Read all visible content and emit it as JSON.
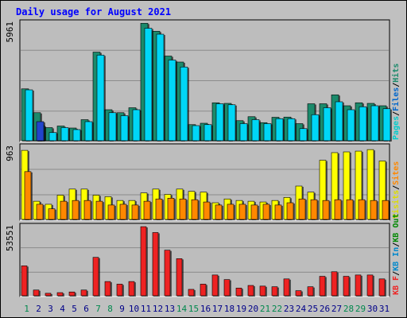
{
  "title": "Daily usage for August 2021",
  "colors": {
    "background": "#c0c0c0",
    "plot_bg": "#bdbdbd",
    "grid": "#8c8c8c",
    "pages": "#00cccc",
    "files": "#1b8a6b",
    "hits": "#00d6f6",
    "visits": "#ffff00",
    "sites": "#ff8800",
    "kb_in": "#0088cc",
    "kb_out": "#008800",
    "kb_f": "#ee2222",
    "title": "#0000ff",
    "weekend": "#00884d",
    "weekday": "#000088"
  },
  "chart_data": [
    {
      "type": "bar",
      "panel": "top",
      "max_label": "5961",
      "ylim": [
        0,
        5961
      ],
      "legend": [
        {
          "name": "Pages",
          "color": "#00cccc"
        },
        {
          "name": "/",
          "color": "#000000"
        },
        {
          "name": "Files",
          "color": "#0066cc"
        },
        {
          "name": "/",
          "color": "#000000"
        },
        {
          "name": "Hits",
          "color": "#1b8a6b"
        }
      ],
      "categories": [
        "1",
        "2",
        "3",
        "4",
        "5",
        "6",
        "7",
        "8",
        "9",
        "10",
        "11",
        "12",
        "13",
        "14",
        "15",
        "16",
        "17",
        "18",
        "19",
        "20",
        "21",
        "22",
        "23",
        "24",
        "25",
        "26",
        "27",
        "28",
        "29",
        "30",
        "31"
      ],
      "series": [
        {
          "name": "Hits",
          "values": [
            2650,
            1450,
            700,
            780,
            680,
            1100,
            4500,
            1600,
            1450,
            1700,
            5950,
            5550,
            4300,
            4000,
            850,
            920,
            1950,
            1920,
            1050,
            1250,
            950,
            1220,
            1230,
            900,
            1900,
            1900,
            2350,
            1800,
            1950,
            1920,
            1800
          ]
        },
        {
          "name": "Files",
          "values": [
            2600,
            800,
            450,
            700,
            600,
            1000,
            4350,
            1450,
            1300,
            1600,
            5700,
            5400,
            4100,
            3750,
            800,
            850,
            1900,
            1850,
            900,
            1100,
            900,
            1150,
            1150,
            650,
            1350,
            1700,
            2000,
            1600,
            1750,
            1800,
            1650
          ]
        },
        {
          "name": "Pages",
          "values": [
            0,
            1000,
            0,
            0,
            0,
            0,
            0,
            0,
            0,
            0,
            0,
            0,
            0,
            0,
            0,
            0,
            0,
            0,
            0,
            0,
            0,
            0,
            0,
            0,
            0,
            0,
            0,
            0,
            0,
            0,
            0
          ]
        }
      ]
    },
    {
      "type": "bar",
      "panel": "middle",
      "max_label": "963",
      "ylim": [
        0,
        963
      ],
      "legend": [
        {
          "name": "Visits",
          "color": "#dddd00"
        },
        {
          "name": "/",
          "color": "#000000"
        },
        {
          "name": "Sites",
          "color": "#ff8800"
        }
      ],
      "categories": [
        "1",
        "2",
        "3",
        "4",
        "5",
        "6",
        "7",
        "8",
        "9",
        "10",
        "11",
        "12",
        "13",
        "14",
        "15",
        "16",
        "17",
        "18",
        "19",
        "20",
        "21",
        "22",
        "23",
        "24",
        "25",
        "26",
        "27",
        "28",
        "29",
        "30",
        "31"
      ],
      "series": [
        {
          "name": "Visits",
          "values": [
            920,
            250,
            210,
            330,
            410,
            410,
            330,
            310,
            260,
            260,
            360,
            410,
            340,
            410,
            380,
            370,
            230,
            280,
            260,
            250,
            240,
            260,
            300,
            450,
            370,
            790,
            890,
            900,
            910,
            930,
            780
          ]
        },
        {
          "name": "Sites",
          "values": [
            640,
            210,
            150,
            250,
            260,
            260,
            250,
            200,
            210,
            200,
            250,
            280,
            290,
            280,
            270,
            240,
            200,
            210,
            210,
            200,
            210,
            200,
            230,
            280,
            270,
            260,
            270,
            270,
            270,
            260,
            260
          ]
        }
      ]
    },
    {
      "type": "bar",
      "panel": "bottom",
      "max_label": "53551",
      "ylim": [
        0,
        53551
      ],
      "legend": [
        {
          "name": "KB F",
          "color": "#ee2222"
        },
        {
          "name": "/",
          "color": "#000000"
        },
        {
          "name": "KB In",
          "color": "#0088cc"
        },
        {
          "name": "/",
          "color": "#000000"
        },
        {
          "name": "KB Out",
          "color": "#008800"
        }
      ],
      "categories": [
        "1",
        "2",
        "3",
        "4",
        "5",
        "6",
        "7",
        "8",
        "9",
        "10",
        "11",
        "12",
        "13",
        "14",
        "15",
        "16",
        "17",
        "18",
        "19",
        "20",
        "21",
        "22",
        "23",
        "24",
        "25",
        "26",
        "27",
        "28",
        "29",
        "30",
        "31"
      ],
      "series": [
        {
          "name": "KB F",
          "values": [
            23500,
            5000,
            2500,
            3000,
            3500,
            5000,
            30000,
            11500,
            9500,
            11500,
            53500,
            49000,
            35500,
            29000,
            5500,
            9500,
            16500,
            13000,
            6500,
            8500,
            8000,
            7500,
            13500,
            4500,
            7500,
            15500,
            19000,
            15500,
            16500,
            16500,
            13500
          ]
        }
      ]
    }
  ],
  "days": [
    {
      "label": "1",
      "weekend": true
    },
    {
      "label": "2",
      "weekend": false
    },
    {
      "label": "3",
      "weekend": false
    },
    {
      "label": "4",
      "weekend": false
    },
    {
      "label": "5",
      "weekend": false
    },
    {
      "label": "6",
      "weekend": false
    },
    {
      "label": "7",
      "weekend": true
    },
    {
      "label": "8",
      "weekend": true
    },
    {
      "label": "9",
      "weekend": false
    },
    {
      "label": "10",
      "weekend": false
    },
    {
      "label": "11",
      "weekend": false
    },
    {
      "label": "12",
      "weekend": false
    },
    {
      "label": "13",
      "weekend": false
    },
    {
      "label": "14",
      "weekend": true
    },
    {
      "label": "15",
      "weekend": true
    },
    {
      "label": "16",
      "weekend": false
    },
    {
      "label": "17",
      "weekend": false
    },
    {
      "label": "18",
      "weekend": false
    },
    {
      "label": "19",
      "weekend": false
    },
    {
      "label": "20",
      "weekend": false
    },
    {
      "label": "21",
      "weekend": true
    },
    {
      "label": "22",
      "weekend": true
    },
    {
      "label": "23",
      "weekend": false
    },
    {
      "label": "24",
      "weekend": false
    },
    {
      "label": "25",
      "weekend": false
    },
    {
      "label": "26",
      "weekend": false
    },
    {
      "label": "27",
      "weekend": false
    },
    {
      "label": "28",
      "weekend": true
    },
    {
      "label": "29",
      "weekend": true
    },
    {
      "label": "30",
      "weekend": false
    },
    {
      "label": "31",
      "weekend": false
    }
  ]
}
